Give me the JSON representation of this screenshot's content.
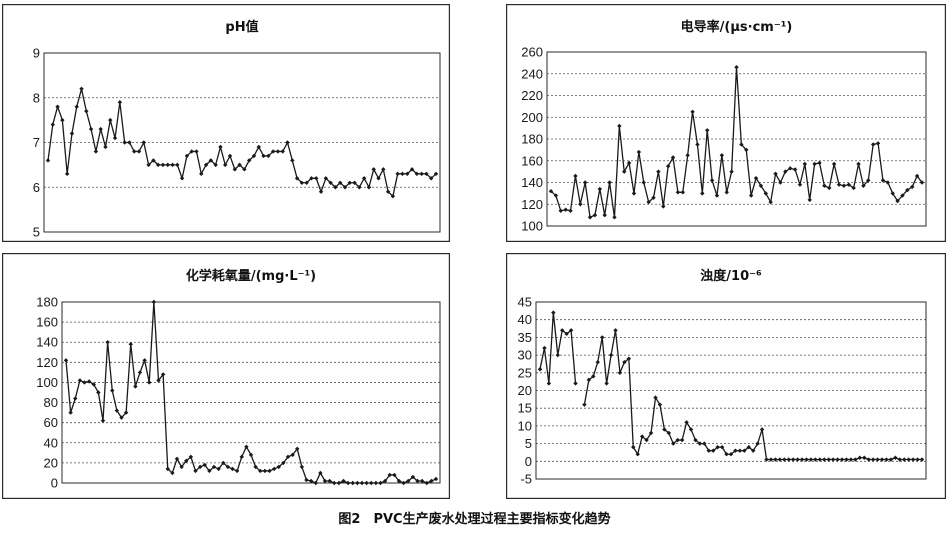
{
  "caption": "图2　PVC生产废水处理过程主要指标变化趋势",
  "chart_data": [
    {
      "type": "line",
      "title": "pH值",
      "ylim": [
        5,
        9
      ],
      "yticks": [
        5,
        6,
        7,
        8,
        9
      ],
      "grid": true,
      "values": [
        6.6,
        7.4,
        7.8,
        7.5,
        6.3,
        7.2,
        7.8,
        8.2,
        7.7,
        7.3,
        6.8,
        7.3,
        6.9,
        7.5,
        7.1,
        7.9,
        7.0,
        7.0,
        6.8,
        6.8,
        7.0,
        6.5,
        6.6,
        6.5,
        6.5,
        6.5,
        6.5,
        6.5,
        6.2,
        6.7,
        6.8,
        6.8,
        6.3,
        6.5,
        6.6,
        6.5,
        6.9,
        6.5,
        6.7,
        6.4,
        6.5,
        6.4,
        6.6,
        6.7,
        6.9,
        6.7,
        6.7,
        6.8,
        6.8,
        6.8,
        7.0,
        6.6,
        6.2,
        6.1,
        6.1,
        6.2,
        6.2,
        5.9,
        6.2,
        6.1,
        6.0,
        6.1,
        6.0,
        6.1,
        6.1,
        6.0,
        6.2,
        6.0,
        6.4,
        6.2,
        6.4,
        5.9,
        5.8,
        6.3,
        6.3,
        6.3,
        6.4,
        6.3,
        6.3,
        6.3,
        6.2,
        6.3
      ]
    },
    {
      "type": "line",
      "title": "电导率/(μs·cm⁻¹)",
      "ylim": [
        100,
        260
      ],
      "yticks": [
        100,
        120,
        140,
        160,
        180,
        200,
        220,
        240,
        260
      ],
      "grid": true,
      "values": [
        132,
        128,
        114,
        115,
        114,
        146,
        120,
        140,
        108,
        110,
        134,
        110,
        140,
        108,
        192,
        150,
        158,
        130,
        168,
        140,
        122,
        126,
        150,
        118,
        155,
        163,
        131,
        131,
        165,
        205,
        175,
        130,
        188,
        142,
        128,
        165,
        131,
        150,
        246,
        175,
        170,
        128,
        144,
        137,
        130,
        122,
        148,
        140,
        150,
        153,
        152,
        138,
        157,
        124,
        157,
        158,
        137,
        135,
        157,
        138,
        137,
        138,
        135,
        157,
        137,
        142,
        175,
        176,
        142,
        140,
        130,
        123,
        128,
        133,
        136,
        146,
        140
      ]
    },
    {
      "type": "line",
      "title": "化学耗氧量/(mg·L⁻¹)",
      "ylim": [
        0,
        180
      ],
      "yticks": [
        0,
        20,
        40,
        60,
        80,
        100,
        120,
        140,
        160,
        180
      ],
      "grid": true,
      "values": [
        122,
        70,
        84,
        102,
        100,
        101,
        98,
        90,
        62,
        140,
        92,
        72,
        65,
        70,
        138,
        96,
        110,
        122,
        100,
        180,
        102,
        108,
        14,
        10,
        24,
        16,
        22,
        26,
        12,
        16,
        18,
        12,
        16,
        14,
        20,
        16,
        14,
        12,
        26,
        36,
        28,
        16,
        12,
        12,
        12,
        14,
        16,
        20,
        26,
        28,
        34,
        16,
        3,
        2,
        0,
        10,
        2,
        2,
        0,
        0,
        2,
        0,
        0,
        0,
        0,
        0,
        0,
        0,
        0,
        2,
        8,
        8,
        2,
        0,
        2,
        6,
        2,
        2,
        0,
        2,
        4
      ]
    },
    {
      "type": "line",
      "title": "浊度/10⁻⁶",
      "ylim": [
        -5,
        45
      ],
      "yticks": [
        -5,
        0,
        5,
        10,
        15,
        20,
        25,
        30,
        35,
        40,
        45
      ],
      "grid": true,
      "values": [
        26,
        32,
        22,
        42,
        30,
        37,
        36,
        37,
        22,
        null,
        16,
        23,
        24,
        28,
        35,
        22,
        30,
        37,
        25,
        28,
        29,
        4,
        2,
        7,
        6,
        8,
        18,
        16,
        9,
        8,
        5,
        6,
        6,
        11,
        9,
        6,
        5,
        5,
        3,
        3,
        4,
        4,
        2,
        2,
        3,
        3,
        3,
        4,
        3,
        5,
        9,
        0.5,
        0.5,
        0.5,
        0.5,
        0.5,
        0.5,
        0.5,
        0.5,
        0.5,
        0.5,
        0.5,
        0.5,
        0.5,
        0.5,
        0.5,
        0.5,
        0.5,
        0.5,
        0.5,
        0.5,
        0.5,
        1,
        1,
        0.5,
        0.5,
        0.5,
        0.5,
        0.5,
        0.5,
        1,
        0.5,
        0.5,
        0.5,
        0.5,
        0.5,
        0.5
      ]
    }
  ]
}
